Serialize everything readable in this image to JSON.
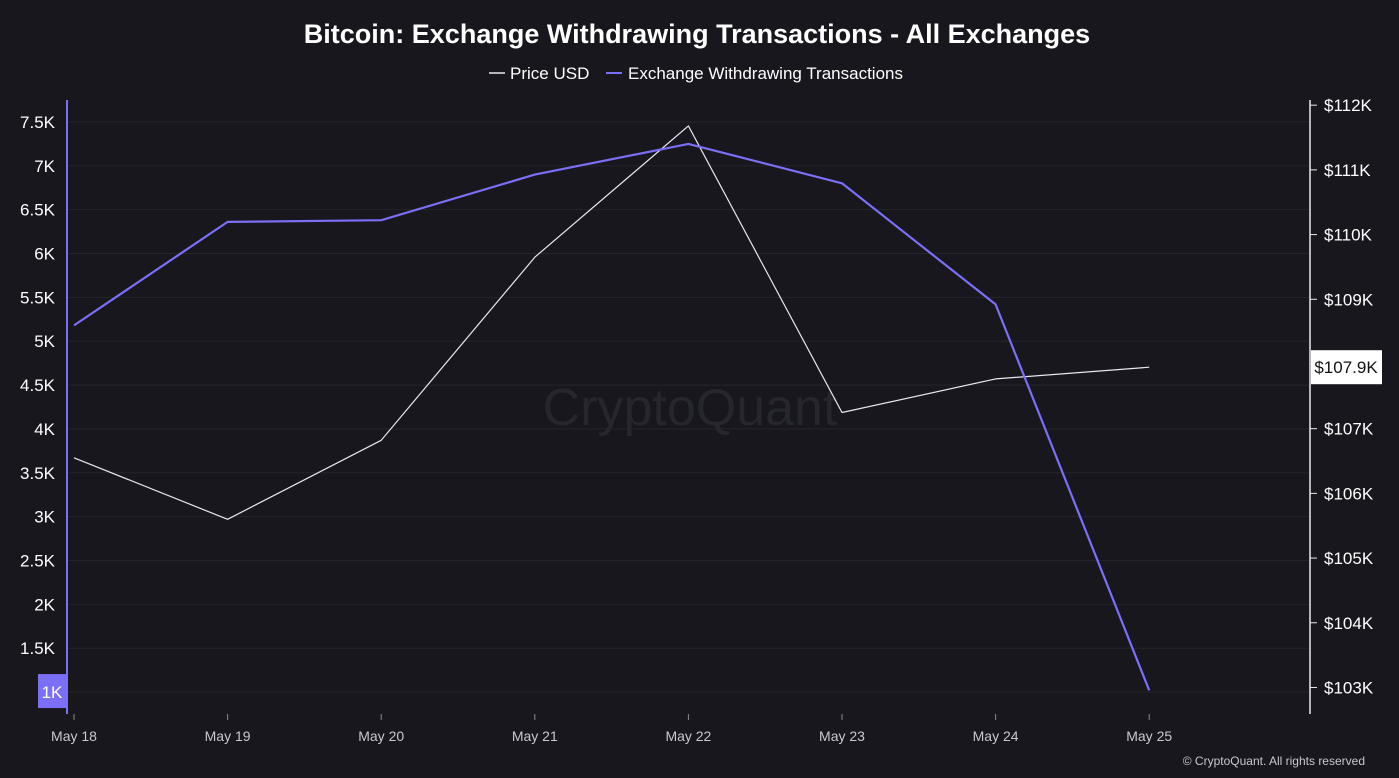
{
  "chart_data": {
    "type": "line",
    "title": "Bitcoin: Exchange Withdrawing Transactions - All Exchanges",
    "categories": [
      "May 18",
      "May 19",
      "May 20",
      "May 21",
      "May 22",
      "May 23",
      "May 24",
      "May 25"
    ],
    "series": [
      {
        "name": "Price USD",
        "axis": "right",
        "color": "#e8e8ee",
        "values": [
          106550,
          105600,
          106820,
          109650,
          111680,
          107250,
          107770,
          107950
        ]
      },
      {
        "name": "Exchange Withdrawing Transactions",
        "axis": "left",
        "color": "#7b6ff5",
        "values": [
          5180,
          6360,
          6380,
          6900,
          7250,
          6800,
          5420,
          1020
        ]
      }
    ],
    "left_axis": {
      "ylim": [
        750,
        7750
      ],
      "ticks": [
        1000,
        1500,
        2000,
        2500,
        3000,
        3500,
        4000,
        4500,
        5000,
        5500,
        6000,
        6500,
        7000,
        7500
      ],
      "tick_labels": [
        "1K",
        "1.5K",
        "2K",
        "2.5K",
        "3K",
        "3.5K",
        "4K",
        "4.5K",
        "5K",
        "5.5K",
        "6K",
        "6.5K",
        "7K",
        "7.5K"
      ],
      "highlight_label": "1K",
      "highlight_value": 1000
    },
    "right_axis": {
      "ylim": [
        102590,
        112080
      ],
      "ticks": [
        103000,
        104000,
        105000,
        106000,
        107000,
        108000,
        109000,
        110000,
        111000,
        112000
      ],
      "tick_labels": [
        "$103K",
        "$104K",
        "$105K",
        "$106K",
        "$107K",
        "",
        "$109K",
        "$110K",
        "$111K",
        "$112K"
      ],
      "highlight_label": "$107.9K",
      "highlight_value": 107950
    },
    "grid": true,
    "legend_position": "top-center",
    "watermark": "CryptoQuant",
    "copyright": "© CryptoQuant. All rights reserved"
  },
  "colors": {
    "background": "#17171d",
    "grid": "#24242b",
    "left_axis": "#7b6ff5",
    "right_axis": "#e8e8ee"
  }
}
